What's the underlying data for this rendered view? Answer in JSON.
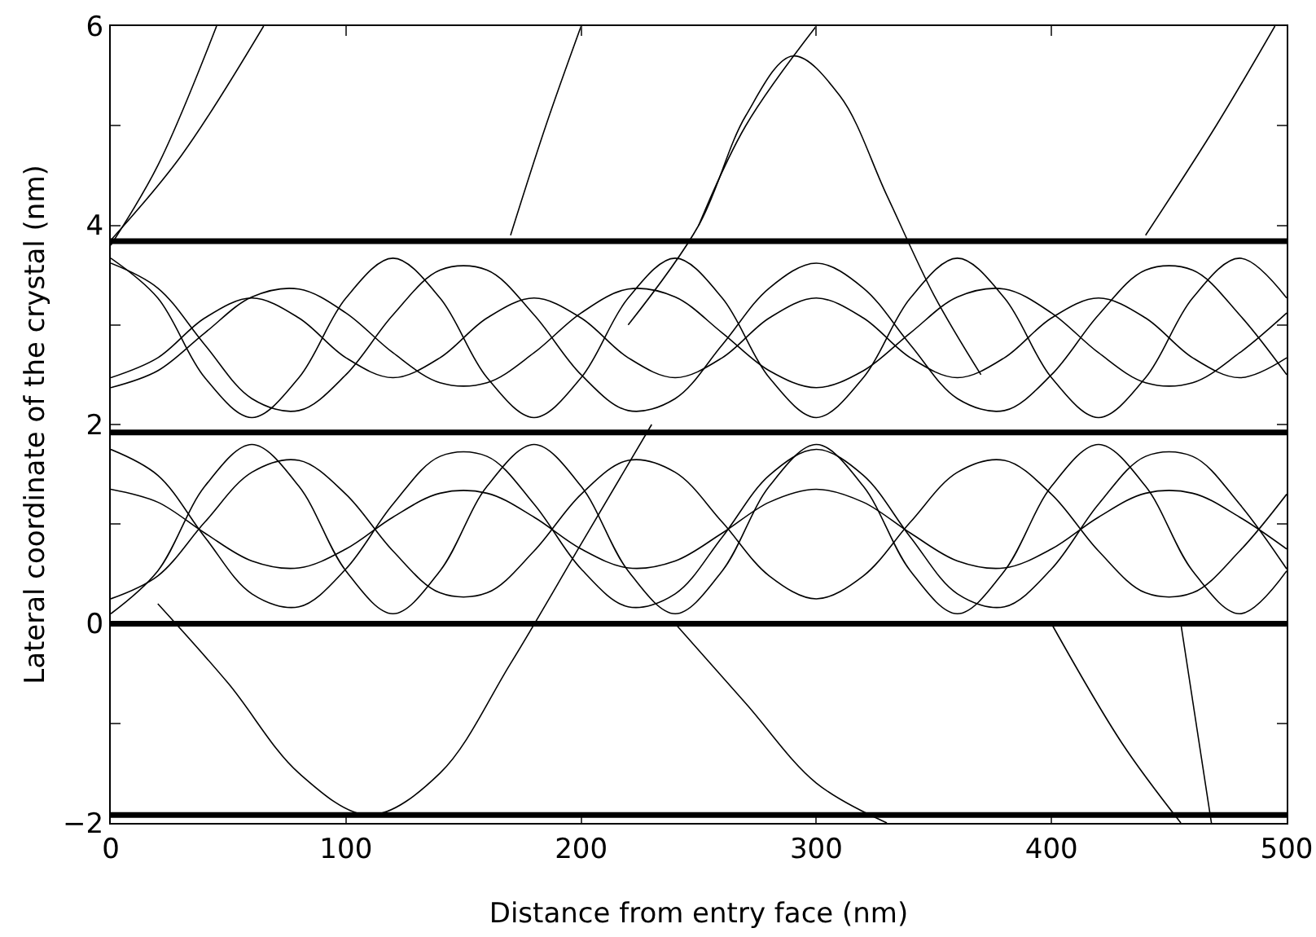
{
  "chart_data": {
    "type": "line",
    "xlabel": "Distance from entry face (nm)",
    "ylabel": "Lateral coordinate of the crystal (nm)",
    "x": [
      0,
      20,
      40,
      60,
      80,
      100,
      120,
      140,
      160,
      180,
      200,
      220,
      240,
      260,
      280,
      300,
      320,
      340,
      360,
      380,
      400,
      420,
      440,
      460,
      480,
      500
    ],
    "xlim": [
      0,
      500
    ],
    "xticks": [
      0,
      100,
      200,
      300,
      400,
      500
    ],
    "ylim": [
      -2,
      6
    ],
    "yticks": [
      -2,
      {
        "value": -1,
        "label": null
      },
      0,
      {
        "value": 1,
        "label": null
      },
      2,
      {
        "value": 3,
        "label": null
      },
      4,
      {
        "value": 5,
        "label": null
      },
      6
    ],
    "grid": false,
    "marker": "none",
    "line_style": "solid",
    "ref_lines": [
      {
        "axis": "y",
        "value": -1.92,
        "color": "#000000"
      },
      {
        "axis": "y",
        "value": 0,
        "color": "#000000"
      },
      {
        "axis": "y",
        "value": 1.92,
        "color": "#000000"
      },
      {
        "axis": "y",
        "value": 3.84,
        "color": "#000000"
      }
    ],
    "series": [
      {
        "color": "#000000",
        "values": [
          1.75,
          1.49,
          0.87,
          0.3,
          0.17,
          0.55,
          1.2,
          1.68,
          1.68,
          1.2,
          0.55,
          0.17,
          0.3,
          0.87,
          1.49,
          1.75,
          1.49,
          0.87,
          0.3,
          0.17,
          0.55,
          1.2,
          1.68,
          1.68,
          1.2,
          0.55
        ]
      },
      {
        "color": "#000000",
        "values": [
          0.25,
          0.48,
          1.02,
          1.52,
          1.64,
          1.3,
          0.73,
          0.31,
          0.31,
          0.73,
          1.3,
          1.64,
          1.52,
          1.02,
          0.48,
          0.25,
          0.48,
          1.02,
          1.52,
          1.64,
          1.3,
          0.73,
          0.31,
          0.31,
          0.73,
          1.3
        ]
      },
      {
        "color": "#000000",
        "values": [
          1.35,
          1.22,
          0.91,
          0.63,
          0.56,
          0.75,
          1.07,
          1.31,
          1.31,
          1.07,
          0.75,
          0.56,
          0.63,
          0.91,
          1.22,
          1.35,
          1.22,
          0.91,
          0.63,
          0.56,
          0.75,
          1.07,
          1.31,
          1.31,
          1.07,
          0.75
        ]
      },
      {
        "color": "#000000",
        "values": [
          0.1,
          0.53,
          1.38,
          1.8,
          1.38,
          0.53,
          0.1,
          0.53,
          1.38,
          1.8,
          1.38,
          0.53,
          0.1,
          0.53,
          1.38,
          1.8,
          1.38,
          0.53,
          0.1,
          0.53,
          1.38,
          1.8,
          1.38,
          0.53,
          0.1,
          0.53
        ]
      },
      {
        "color": "#000000",
        "values": [
          3.62,
          3.37,
          2.8,
          2.26,
          2.14,
          2.5,
          3.1,
          3.55,
          3.55,
          3.1,
          2.5,
          2.14,
          2.26,
          2.8,
          3.37,
          3.62,
          3.37,
          2.8,
          2.26,
          2.14,
          2.5,
          3.1,
          3.55,
          3.55,
          3.1,
          2.5
        ]
      },
      {
        "color": "#000000",
        "values": [
          3.67,
          3.27,
          2.47,
          2.07,
          2.47,
          3.27,
          3.67,
          3.27,
          2.47,
          2.07,
          2.47,
          3.27,
          3.67,
          3.27,
          2.47,
          2.07,
          2.47,
          3.27,
          3.67,
          3.27,
          2.47,
          2.07,
          2.47,
          3.27,
          3.67,
          3.27
        ]
      },
      {
        "color": "#000000",
        "values": [
          2.37,
          2.54,
          2.92,
          3.28,
          3.36,
          3.12,
          2.72,
          2.42,
          2.42,
          2.72,
          3.12,
          3.36,
          3.28,
          2.92,
          2.54,
          2.37,
          2.54,
          2.92,
          3.28,
          3.36,
          3.12,
          2.72,
          2.42,
          2.42,
          2.72,
          3.12
        ]
      },
      {
        "color": "#000000",
        "values": [
          2.47,
          2.67,
          3.07,
          3.27,
          3.07,
          2.67,
          2.47,
          2.67,
          3.07,
          3.27,
          3.07,
          2.67,
          2.47,
          2.67,
          3.07,
          3.27,
          3.07,
          2.67,
          2.47,
          2.67,
          3.07,
          3.27,
          3.07,
          2.67,
          2.47,
          2.67
        ]
      },
      {
        "color": "#000000",
        "x": [
          0,
          20,
          45
        ],
        "values": [
          3.8,
          4.6,
          6
        ]
      },
      {
        "color": "#000000",
        "x": [
          0,
          30,
          65
        ],
        "values": [
          3.85,
          4.7,
          6
        ]
      },
      {
        "color": "#000000",
        "x": [
          220,
          250,
          270,
          290,
          310,
          330,
          350,
          370
        ],
        "values": [
          3.0,
          4.0,
          5.1,
          5.7,
          5.3,
          4.3,
          3.3,
          2.5
        ]
      },
      {
        "color": "#000000",
        "x": [
          20,
          50,
          80,
          110,
          140,
          170,
          200,
          230
        ],
        "values": [
          0.2,
          -0.6,
          -1.5,
          -1.92,
          -1.5,
          -0.4,
          0.8,
          2.0
        ]
      },
      {
        "color": "#000000",
        "x": [
          240,
          270,
          300,
          330
        ],
        "values": [
          0,
          -0.8,
          -1.6,
          -2
        ]
      },
      {
        "color": "#000000",
        "x": [
          400,
          430,
          455
        ],
        "values": [
          0,
          -1.2,
          -2
        ]
      },
      {
        "color": "#000000",
        "x": [
          170,
          185,
          200
        ],
        "values": [
          3.9,
          5,
          6
        ]
      },
      {
        "color": "#000000",
        "x": [
          440,
          470,
          495
        ],
        "values": [
          3.9,
          5,
          6
        ]
      },
      {
        "color": "#000000",
        "x": [
          250,
          270,
          300
        ],
        "values": [
          4.0,
          5.0,
          6.0
        ]
      },
      {
        "color": "#000000",
        "x": [
          455,
          468
        ],
        "values": [
          0,
          -2
        ]
      }
    ]
  }
}
